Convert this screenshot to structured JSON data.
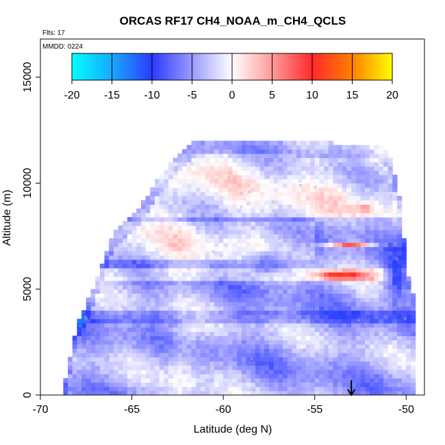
{
  "chart_data": {
    "type": "heatmap",
    "title": "ORCAS RF17 CH4_NOAA_m_CH4_QCLS",
    "subtitle_flights": "Flts: 17",
    "subtitle_date": "MMDD: 0224",
    "xlabel": "Latitude (deg N)",
    "ylabel": "Altitude (m)",
    "xlim": [
      -70,
      -49
    ],
    "ylim": [
      0,
      16800
    ],
    "x_ticks": [
      -70,
      -65,
      -60,
      -55,
      -50
    ],
    "x_tick_labels": [
      "-70",
      "-65",
      "-60",
      "-55",
      "-50"
    ],
    "y_ticks": [
      0,
      5000,
      10000,
      15000
    ],
    "y_tick_labels": [
      "0",
      "5000",
      "10000",
      "15000"
    ],
    "colorbar": {
      "min": -20,
      "max": 20,
      "ticks": [
        -20,
        -15,
        -10,
        -5,
        0,
        5,
        10,
        15,
        20
      ],
      "tick_labels": [
        "-20",
        "-15",
        "-10",
        "-5",
        "0",
        "5",
        "10",
        "15",
        "20"
      ],
      "colors": [
        {
          "value": -20,
          "color": "#00ffff"
        },
        {
          "value": -15,
          "color": "#18a8ff"
        },
        {
          "value": -10,
          "color": "#2a3cff"
        },
        {
          "value": -5,
          "color": "#9a9aff"
        },
        {
          "value": 0,
          "color": "#ffffff"
        },
        {
          "value": 5,
          "color": "#ff9a9a"
        },
        {
          "value": 10,
          "color": "#ff2a2a"
        },
        {
          "value": 15,
          "color": "#ff8000"
        },
        {
          "value": 20,
          "color": "#ffff00"
        }
      ]
    },
    "grid_dx": 0.25,
    "grid_dz": 200,
    "envelope": {
      "lat": [
        -68.8,
        -68.4,
        -68.0,
        -67.4,
        -66.8,
        -66.2,
        -65.6,
        -65.0,
        -64.4,
        -63.8,
        -63.2,
        -62.6,
        -62.0,
        -61.4,
        -60.8,
        -60.2,
        -59.6,
        -59.0,
        -58.0,
        -56.0,
        -54.0,
        -52.0,
        -51.5,
        -51.0,
        -50.5,
        -50.2,
        -50.0,
        -49.5
      ],
      "top": [
        0,
        1600,
        3200,
        4400,
        5600,
        7200,
        8000,
        8300,
        9000,
        9800,
        10500,
        11100,
        11600,
        12000,
        12000,
        12000,
        12000,
        12000,
        12000,
        12000,
        11800,
        11800,
        11800,
        11500,
        10000,
        8200,
        6000,
        4400
      ]
    },
    "features": [
      {
        "lat": -52.2,
        "alt": 8800,
        "value": 6,
        "sigma_lat": 0.4,
        "sigma_alt": 250
      },
      {
        "lat": -53.0,
        "alt": 7100,
        "value": 8,
        "sigma_lat": 1.2,
        "sigma_alt": 120
      },
      {
        "lat": -53.5,
        "alt": 5650,
        "value": 12,
        "sigma_lat": 1.3,
        "sigma_alt": 180
      },
      {
        "lat": -50.5,
        "alt": 5800,
        "value": -10,
        "sigma_lat": 0.6,
        "sigma_alt": 1400
      },
      {
        "lat": -57.5,
        "alt": 6200,
        "value": -7,
        "sigma_lat": 1.5,
        "sigma_alt": 600
      },
      {
        "lat": -61.5,
        "alt": 12100,
        "value": 6,
        "sigma_lat": 0.2,
        "sigma_alt": 120
      },
      {
        "lat": -60.5,
        "alt": 12100,
        "value": 5,
        "sigma_lat": 0.2,
        "sigma_alt": 120
      },
      {
        "lat": -58.1,
        "alt": 12100,
        "value": 14,
        "sigma_lat": 0.15,
        "sigma_alt": 120
      },
      {
        "lat": -57.6,
        "alt": 12100,
        "value": 10,
        "sigma_lat": 0.15,
        "sigma_alt": 120
      },
      {
        "lat": -56.9,
        "alt": 12100,
        "value": -9,
        "sigma_lat": 0.25,
        "sigma_alt": 120
      }
    ],
    "arrow_marker": {
      "lat": -53.0,
      "alt_top": 700,
      "alt_bottom": 0
    }
  }
}
